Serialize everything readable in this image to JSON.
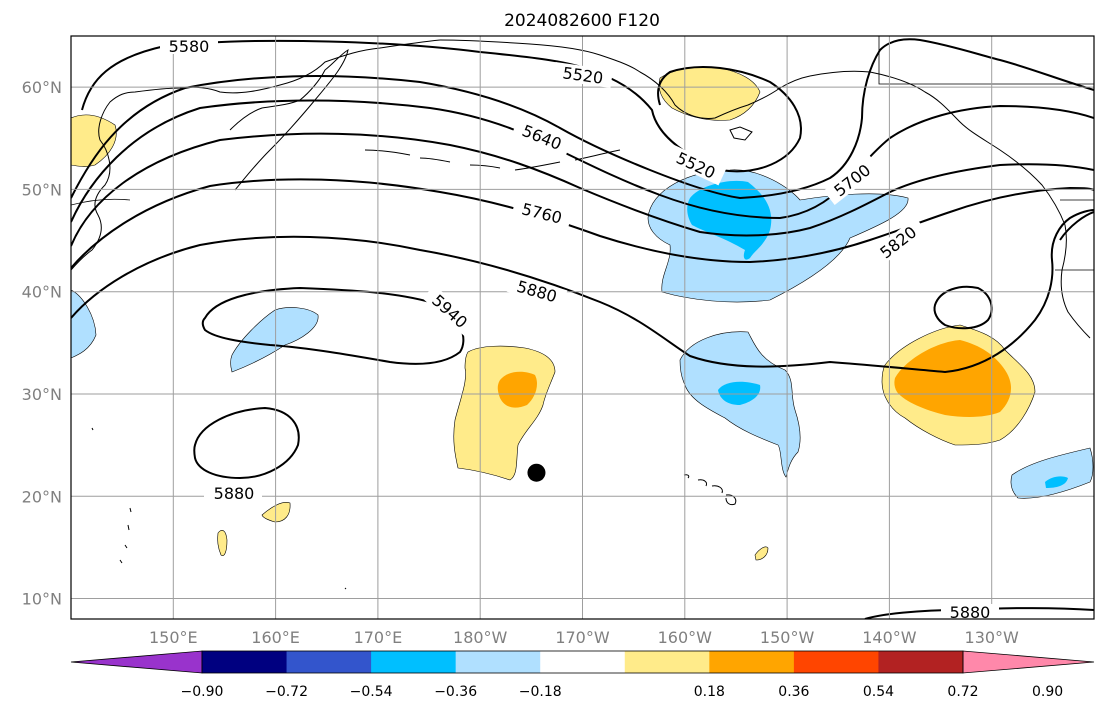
{
  "title": "2024082600 F120",
  "map": {
    "lon_range": [
      140,
      240
    ],
    "lat_range": [
      8,
      65
    ],
    "lat_labels": [
      "10°N",
      "20°N",
      "30°N",
      "40°N",
      "50°N",
      "60°N"
    ],
    "lat_values": [
      10,
      20,
      30,
      40,
      50,
      60
    ],
    "lon_labels": [
      "150°E",
      "160°E",
      "170°E",
      "180°W",
      "170°W",
      "160°W",
      "150°W",
      "140°W",
      "130°W"
    ],
    "lon_values": [
      150,
      160,
      170,
      180,
      190,
      200,
      210,
      220,
      230
    ],
    "contour_labels": [
      "5580",
      "5520",
      "5640",
      "5520",
      "5760",
      "5700",
      "5820",
      "5880",
      "5940",
      "5880",
      "5880"
    ],
    "marker": {
      "label": "black dot",
      "lon": 185.5,
      "lat": 22.3
    }
  },
  "colorbar": {
    "ticks": [
      "−0.90",
      "−0.72",
      "−0.54",
      "−0.36",
      "−0.18",
      "0.18",
      "0.36",
      "0.54",
      "0.72",
      "0.90"
    ],
    "colors": [
      "#9933cc",
      "#000080",
      "#3355cc",
      "#00bfff",
      "#b0e0ff",
      "#ffffff",
      "#ffeb8a",
      "#ffa500",
      "#ff4500",
      "#b22222",
      "#ff88aa"
    ]
  }
}
